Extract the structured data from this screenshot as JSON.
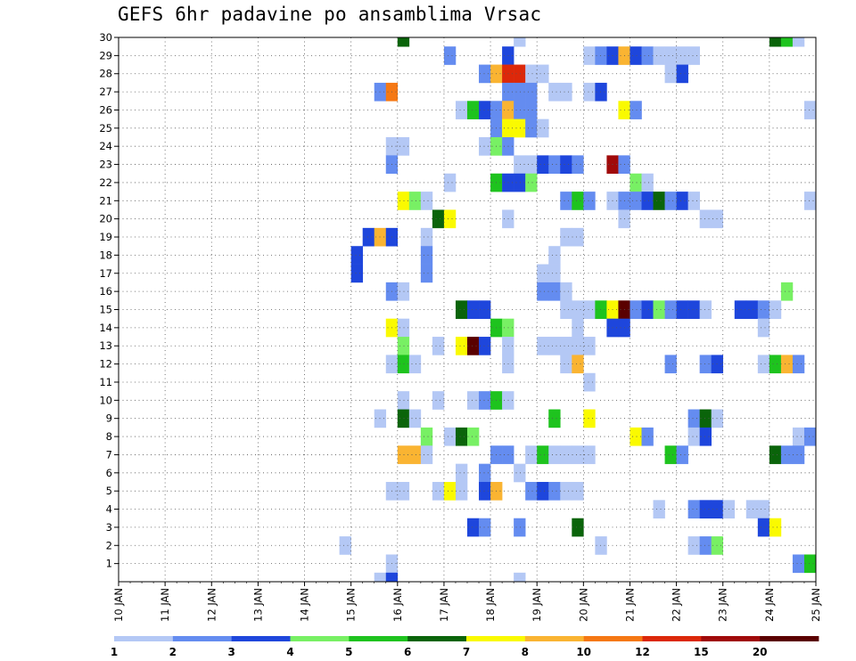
{
  "chart_data": {
    "type": "heatmap",
    "title": "GEFS 6hr padavine po ansamblima Vrsac",
    "xlabel": "",
    "ylabel": "",
    "x_tick_labels": [
      "10 JAN",
      "11 JAN",
      "12 JAN",
      "13 JAN",
      "14 JAN",
      "15 JAN",
      "16 JAN",
      "17 JAN",
      "18 JAN",
      "19 JAN",
      "20 JAN",
      "21 JAN",
      "22 JAN",
      "23 JAN",
      "24 JAN",
      "25 JAN"
    ],
    "y_tick_labels": [
      "1",
      "2",
      "3",
      "4",
      "5",
      "6",
      "7",
      "8",
      "9",
      "10",
      "11",
      "12",
      "13",
      "14",
      "15",
      "16",
      "17",
      "18",
      "19",
      "20",
      "21",
      "22",
      "23",
      "24",
      "25",
      "26",
      "27",
      "28",
      "29",
      "30"
    ],
    "xlim_days": [
      10,
      25
    ],
    "ylim_members": [
      0,
      30
    ],
    "time_step_hours": 6,
    "grid": true,
    "colorbar": {
      "labels": [
        "1",
        "2",
        "3",
        "4",
        "5",
        "6",
        "7",
        "8",
        "10",
        "12",
        "15",
        "20"
      ],
      "colors": [
        "#b4c8f5",
        "#648cf0",
        "#1e46dc",
        "#78f064",
        "#1ec31e",
        "#0a640a",
        "#fafa00",
        "#fab432",
        "#f57814",
        "#dc280a",
        "#a00a0a",
        "#5a0000"
      ]
    },
    "cells": [
      {
        "m": 30,
        "t": 16.0,
        "c": 6
      },
      {
        "m": 30,
        "t": 18.5,
        "c": 1
      },
      {
        "m": 30,
        "t": 24.0,
        "c": 6
      },
      {
        "m": 30,
        "t": 24.25,
        "c": 5
      },
      {
        "m": 30,
        "t": 24.5,
        "c": 1
      },
      {
        "m": 29,
        "t": 17.0,
        "c": 2
      },
      {
        "m": 29,
        "t": 18.25,
        "c": 3
      },
      {
        "m": 29,
        "t": 20.0,
        "c": 1
      },
      {
        "m": 29,
        "t": 20.25,
        "c": 2
      },
      {
        "m": 29,
        "t": 20.5,
        "c": 3
      },
      {
        "m": 29,
        "t": 20.75,
        "c": 8
      },
      {
        "m": 29,
        "t": 21.0,
        "c": 3
      },
      {
        "m": 29,
        "t": 21.25,
        "c": 2
      },
      {
        "m": 29,
        "t": 21.5,
        "c": 1
      },
      {
        "m": 29,
        "t": 21.75,
        "c": 1
      },
      {
        "m": 29,
        "t": 22.0,
        "c": 1
      },
      {
        "m": 29,
        "t": 22.25,
        "c": 1
      },
      {
        "m": 28,
        "t": 17.75,
        "c": 2
      },
      {
        "m": 28,
        "t": 18.0,
        "c": 8
      },
      {
        "m": 28,
        "t": 18.25,
        "c": 10
      },
      {
        "m": 28,
        "t": 18.5,
        "c": 10
      },
      {
        "m": 28,
        "t": 18.75,
        "c": 1
      },
      {
        "m": 28,
        "t": 19.0,
        "c": 1
      },
      {
        "m": 28,
        "t": 21.75,
        "c": 1
      },
      {
        "m": 28,
        "t": 22.0,
        "c": 3
      },
      {
        "m": 27,
        "t": 15.5,
        "c": 2
      },
      {
        "m": 27,
        "t": 15.75,
        "c": 9
      },
      {
        "m": 27,
        "t": 18.25,
        "c": 2
      },
      {
        "m": 27,
        "t": 18.5,
        "c": 2
      },
      {
        "m": 27,
        "t": 18.75,
        "c": 2
      },
      {
        "m": 27,
        "t": 19.25,
        "c": 1
      },
      {
        "m": 27,
        "t": 19.5,
        "c": 1
      },
      {
        "m": 27,
        "t": 20.0,
        "c": 1
      },
      {
        "m": 27,
        "t": 20.25,
        "c": 3
      },
      {
        "m": 26,
        "t": 17.25,
        "c": 1
      },
      {
        "m": 26,
        "t": 17.5,
        "c": 5
      },
      {
        "m": 26,
        "t": 17.75,
        "c": 3
      },
      {
        "m": 26,
        "t": 18.0,
        "c": 2
      },
      {
        "m": 26,
        "t": 18.25,
        "c": 8
      },
      {
        "m": 26,
        "t": 18.5,
        "c": 2
      },
      {
        "m": 26,
        "t": 18.75,
        "c": 2
      },
      {
        "m": 26,
        "t": 20.75,
        "c": 7
      },
      {
        "m": 26,
        "t": 21.0,
        "c": 2
      },
      {
        "m": 26,
        "t": 24.75,
        "c": 1
      },
      {
        "m": 25,
        "t": 18.0,
        "c": 2
      },
      {
        "m": 25,
        "t": 18.25,
        "c": 7
      },
      {
        "m": 25,
        "t": 18.5,
        "c": 7
      },
      {
        "m": 25,
        "t": 18.75,
        "c": 2
      },
      {
        "m": 25,
        "t": 19.0,
        "c": 1
      },
      {
        "m": 24,
        "t": 15.75,
        "c": 1
      },
      {
        "m": 24,
        "t": 16.0,
        "c": 1
      },
      {
        "m": 24,
        "t": 17.75,
        "c": 1
      },
      {
        "m": 24,
        "t": 18.0,
        "c": 4
      },
      {
        "m": 24,
        "t": 18.25,
        "c": 2
      },
      {
        "m": 23,
        "t": 15.75,
        "c": 2
      },
      {
        "m": 23,
        "t": 18.5,
        "c": 1
      },
      {
        "m": 23,
        "t": 18.75,
        "c": 1
      },
      {
        "m": 23,
        "t": 19.0,
        "c": 3
      },
      {
        "m": 23,
        "t": 19.25,
        "c": 2
      },
      {
        "m": 23,
        "t": 19.5,
        "c": 3
      },
      {
        "m": 23,
        "t": 19.75,
        "c": 2
      },
      {
        "m": 23,
        "t": 20.5,
        "c": 11
      },
      {
        "m": 23,
        "t": 20.75,
        "c": 2
      },
      {
        "m": 22,
        "t": 17.0,
        "c": 1
      },
      {
        "m": 22,
        "t": 18.0,
        "c": 5
      },
      {
        "m": 22,
        "t": 18.25,
        "c": 3
      },
      {
        "m": 22,
        "t": 18.5,
        "c": 3
      },
      {
        "m": 22,
        "t": 18.75,
        "c": 4
      },
      {
        "m": 22,
        "t": 21.0,
        "c": 4
      },
      {
        "m": 22,
        "t": 21.25,
        "c": 1
      },
      {
        "m": 21,
        "t": 16.0,
        "c": 7
      },
      {
        "m": 21,
        "t": 16.25,
        "c": 4
      },
      {
        "m": 21,
        "t": 16.5,
        "c": 1
      },
      {
        "m": 21,
        "t": 19.5,
        "c": 2
      },
      {
        "m": 21,
        "t": 19.75,
        "c": 5
      },
      {
        "m": 21,
        "t": 20.0,
        "c": 2
      },
      {
        "m": 21,
        "t": 20.5,
        "c": 1
      },
      {
        "m": 21,
        "t": 20.75,
        "c": 2
      },
      {
        "m": 21,
        "t": 21.0,
        "c": 2
      },
      {
        "m": 21,
        "t": 21.25,
        "c": 3
      },
      {
        "m": 21,
        "t": 21.5,
        "c": 6
      },
      {
        "m": 21,
        "t": 21.75,
        "c": 2
      },
      {
        "m": 21,
        "t": 22.0,
        "c": 3
      },
      {
        "m": 21,
        "t": 22.25,
        "c": 1
      },
      {
        "m": 21,
        "t": 24.75,
        "c": 1
      },
      {
        "m": 20,
        "t": 16.75,
        "c": 6
      },
      {
        "m": 20,
        "t": 17.0,
        "c": 7
      },
      {
        "m": 20,
        "t": 18.25,
        "c": 1
      },
      {
        "m": 20,
        "t": 20.75,
        "c": 1
      },
      {
        "m": 20,
        "t": 22.5,
        "c": 1
      },
      {
        "m": 20,
        "t": 22.75,
        "c": 1
      },
      {
        "m": 19,
        "t": 15.25,
        "c": 3
      },
      {
        "m": 19,
        "t": 15.5,
        "c": 8
      },
      {
        "m": 19,
        "t": 15.75,
        "c": 3
      },
      {
        "m": 19,
        "t": 16.5,
        "c": 1
      },
      {
        "m": 19,
        "t": 19.5,
        "c": 1
      },
      {
        "m": 19,
        "t": 19.75,
        "c": 1
      },
      {
        "m": 18,
        "t": 15.0,
        "c": 3
      },
      {
        "m": 18,
        "t": 16.5,
        "c": 2
      },
      {
        "m": 18,
        "t": 19.25,
        "c": 1
      },
      {
        "m": 17,
        "t": 15.0,
        "c": 3
      },
      {
        "m": 17,
        "t": 16.5,
        "c": 2
      },
      {
        "m": 17,
        "t": 19.0,
        "c": 1
      },
      {
        "m": 17,
        "t": 19.25,
        "c": 1
      },
      {
        "m": 16,
        "t": 15.75,
        "c": 2
      },
      {
        "m": 16,
        "t": 16.0,
        "c": 1
      },
      {
        "m": 16,
        "t": 19.0,
        "c": 2
      },
      {
        "m": 16,
        "t": 19.25,
        "c": 2
      },
      {
        "m": 16,
        "t": 19.5,
        "c": 1
      },
      {
        "m": 16,
        "t": 24.25,
        "c": 4
      },
      {
        "m": 15,
        "t": 17.25,
        "c": 6
      },
      {
        "m": 15,
        "t": 17.5,
        "c": 3
      },
      {
        "m": 15,
        "t": 17.75,
        "c": 3
      },
      {
        "m": 15,
        "t": 19.5,
        "c": 1
      },
      {
        "m": 15,
        "t": 19.75,
        "c": 1
      },
      {
        "m": 15,
        "t": 20.0,
        "c": 1
      },
      {
        "m": 15,
        "t": 20.25,
        "c": 5
      },
      {
        "m": 15,
        "t": 20.5,
        "c": 7
      },
      {
        "m": 15,
        "t": 20.75,
        "c": 12
      },
      {
        "m": 15,
        "t": 21.0,
        "c": 2
      },
      {
        "m": 15,
        "t": 21.25,
        "c": 3
      },
      {
        "m": 15,
        "t": 21.5,
        "c": 4
      },
      {
        "m": 15,
        "t": 21.75,
        "c": 2
      },
      {
        "m": 15,
        "t": 22.0,
        "c": 3
      },
      {
        "m": 15,
        "t": 22.25,
        "c": 3
      },
      {
        "m": 15,
        "t": 22.5,
        "c": 1
      },
      {
        "m": 15,
        "t": 23.25,
        "c": 3
      },
      {
        "m": 15,
        "t": 23.5,
        "c": 3
      },
      {
        "m": 15,
        "t": 23.75,
        "c": 2
      },
      {
        "m": 15,
        "t": 24.0,
        "c": 1
      },
      {
        "m": 14,
        "t": 15.75,
        "c": 7
      },
      {
        "m": 14,
        "t": 16.0,
        "c": 1
      },
      {
        "m": 14,
        "t": 18.0,
        "c": 5
      },
      {
        "m": 14,
        "t": 18.25,
        "c": 4
      },
      {
        "m": 14,
        "t": 19.75,
        "c": 1
      },
      {
        "m": 14,
        "t": 20.5,
        "c": 3
      },
      {
        "m": 14,
        "t": 20.75,
        "c": 3
      },
      {
        "m": 14,
        "t": 23.75,
        "c": 1
      },
      {
        "m": 13,
        "t": 16.0,
        "c": 4
      },
      {
        "m": 13,
        "t": 16.75,
        "c": 1
      },
      {
        "m": 13,
        "t": 17.25,
        "c": 7
      },
      {
        "m": 13,
        "t": 17.5,
        "c": 12
      },
      {
        "m": 13,
        "t": 17.75,
        "c": 3
      },
      {
        "m": 13,
        "t": 18.25,
        "c": 1
      },
      {
        "m": 13,
        "t": 19.0,
        "c": 1
      },
      {
        "m": 13,
        "t": 19.25,
        "c": 1
      },
      {
        "m": 13,
        "t": 19.5,
        "c": 1
      },
      {
        "m": 13,
        "t": 19.75,
        "c": 1
      },
      {
        "m": 13,
        "t": 20.0,
        "c": 1
      },
      {
        "m": 12,
        "t": 15.75,
        "c": 1
      },
      {
        "m": 12,
        "t": 16.0,
        "c": 5
      },
      {
        "m": 12,
        "t": 16.25,
        "c": 1
      },
      {
        "m": 12,
        "t": 18.25,
        "c": 1
      },
      {
        "m": 12,
        "t": 19.5,
        "c": 1
      },
      {
        "m": 12,
        "t": 19.75,
        "c": 8
      },
      {
        "m": 12,
        "t": 21.75,
        "c": 2
      },
      {
        "m": 12,
        "t": 22.5,
        "c": 2
      },
      {
        "m": 12,
        "t": 22.75,
        "c": 3
      },
      {
        "m": 12,
        "t": 23.75,
        "c": 1
      },
      {
        "m": 12,
        "t": 24.0,
        "c": 5
      },
      {
        "m": 12,
        "t": 24.25,
        "c": 8
      },
      {
        "m": 12,
        "t": 24.5,
        "c": 2
      },
      {
        "m": 11,
        "t": 20.0,
        "c": 1
      },
      {
        "m": 10,
        "t": 16.0,
        "c": 1
      },
      {
        "m": 10,
        "t": 16.75,
        "c": 1
      },
      {
        "m": 10,
        "t": 17.5,
        "c": 1
      },
      {
        "m": 10,
        "t": 17.75,
        "c": 2
      },
      {
        "m": 10,
        "t": 18.0,
        "c": 5
      },
      {
        "m": 10,
        "t": 18.25,
        "c": 1
      },
      {
        "m": 9,
        "t": 15.5,
        "c": 1
      },
      {
        "m": 9,
        "t": 16.0,
        "c": 6
      },
      {
        "m": 9,
        "t": 16.25,
        "c": 1
      },
      {
        "m": 9,
        "t": 19.25,
        "c": 5
      },
      {
        "m": 9,
        "t": 20.0,
        "c": 7
      },
      {
        "m": 9,
        "t": 22.25,
        "c": 2
      },
      {
        "m": 9,
        "t": 22.5,
        "c": 6
      },
      {
        "m": 9,
        "t": 22.75,
        "c": 1
      },
      {
        "m": 8,
        "t": 16.5,
        "c": 4
      },
      {
        "m": 8,
        "t": 17.0,
        "c": 1
      },
      {
        "m": 8,
        "t": 17.25,
        "c": 6
      },
      {
        "m": 8,
        "t": 17.5,
        "c": 4
      },
      {
        "m": 8,
        "t": 21.0,
        "c": 7
      },
      {
        "m": 8,
        "t": 21.25,
        "c": 2
      },
      {
        "m": 8,
        "t": 22.25,
        "c": 1
      },
      {
        "m": 8,
        "t": 22.5,
        "c": 3
      },
      {
        "m": 8,
        "t": 24.5,
        "c": 1
      },
      {
        "m": 8,
        "t": 24.75,
        "c": 2
      },
      {
        "m": 7,
        "t": 16.0,
        "c": 8
      },
      {
        "m": 7,
        "t": 16.25,
        "c": 8
      },
      {
        "m": 7,
        "t": 16.5,
        "c": 1
      },
      {
        "m": 7,
        "t": 18.0,
        "c": 2
      },
      {
        "m": 7,
        "t": 18.25,
        "c": 2
      },
      {
        "m": 7,
        "t": 18.75,
        "c": 1
      },
      {
        "m": 7,
        "t": 19.0,
        "c": 5
      },
      {
        "m": 7,
        "t": 19.25,
        "c": 1
      },
      {
        "m": 7,
        "t": 19.5,
        "c": 1
      },
      {
        "m": 7,
        "t": 19.75,
        "c": 1
      },
      {
        "m": 7,
        "t": 20.0,
        "c": 1
      },
      {
        "m": 7,
        "t": 21.75,
        "c": 5
      },
      {
        "m": 7,
        "t": 22.0,
        "c": 2
      },
      {
        "m": 7,
        "t": 24.0,
        "c": 6
      },
      {
        "m": 7,
        "t": 24.25,
        "c": 2
      },
      {
        "m": 7,
        "t": 24.5,
        "c": 2
      },
      {
        "m": 6,
        "t": 17.25,
        "c": 1
      },
      {
        "m": 6,
        "t": 17.75,
        "c": 2
      },
      {
        "m": 6,
        "t": 18.5,
        "c": 1
      },
      {
        "m": 5,
        "t": 15.75,
        "c": 1
      },
      {
        "m": 5,
        "t": 16.0,
        "c": 1
      },
      {
        "m": 5,
        "t": 16.75,
        "c": 1
      },
      {
        "m": 5,
        "t": 17.0,
        "c": 7
      },
      {
        "m": 5,
        "t": 17.25,
        "c": 1
      },
      {
        "m": 5,
        "t": 17.75,
        "c": 3
      },
      {
        "m": 5,
        "t": 18.0,
        "c": 8
      },
      {
        "m": 5,
        "t": 18.75,
        "c": 2
      },
      {
        "m": 5,
        "t": 19.0,
        "c": 3
      },
      {
        "m": 5,
        "t": 19.25,
        "c": 2
      },
      {
        "m": 5,
        "t": 19.5,
        "c": 1
      },
      {
        "m": 5,
        "t": 19.75,
        "c": 1
      },
      {
        "m": 4,
        "t": 21.5,
        "c": 1
      },
      {
        "m": 4,
        "t": 22.25,
        "c": 2
      },
      {
        "m": 4,
        "t": 22.5,
        "c": 3
      },
      {
        "m": 4,
        "t": 22.75,
        "c": 3
      },
      {
        "m": 4,
        "t": 23.0,
        "c": 1
      },
      {
        "m": 4,
        "t": 23.5,
        "c": 1
      },
      {
        "m": 4,
        "t": 23.75,
        "c": 1
      },
      {
        "m": 3,
        "t": 17.5,
        "c": 3
      },
      {
        "m": 3,
        "t": 17.75,
        "c": 2
      },
      {
        "m": 3,
        "t": 18.5,
        "c": 2
      },
      {
        "m": 3,
        "t": 19.75,
        "c": 6
      },
      {
        "m": 3,
        "t": 23.75,
        "c": 3
      },
      {
        "m": 3,
        "t": 24.0,
        "c": 7
      },
      {
        "m": 2,
        "t": 14.75,
        "c": 1
      },
      {
        "m": 2,
        "t": 20.25,
        "c": 1
      },
      {
        "m": 2,
        "t": 22.25,
        "c": 1
      },
      {
        "m": 2,
        "t": 22.5,
        "c": 2
      },
      {
        "m": 2,
        "t": 22.75,
        "c": 4
      },
      {
        "m": 1,
        "t": 15.75,
        "c": 1
      },
      {
        "m": 1,
        "t": 24.5,
        "c": 2
      },
      {
        "m": 1,
        "t": 24.75,
        "c": 5
      },
      {
        "m": 0,
        "t": 15.5,
        "c": 1
      },
      {
        "m": 0,
        "t": 15.75,
        "c": 3
      },
      {
        "m": 0,
        "t": 18.5,
        "c": 1
      }
    ]
  }
}
